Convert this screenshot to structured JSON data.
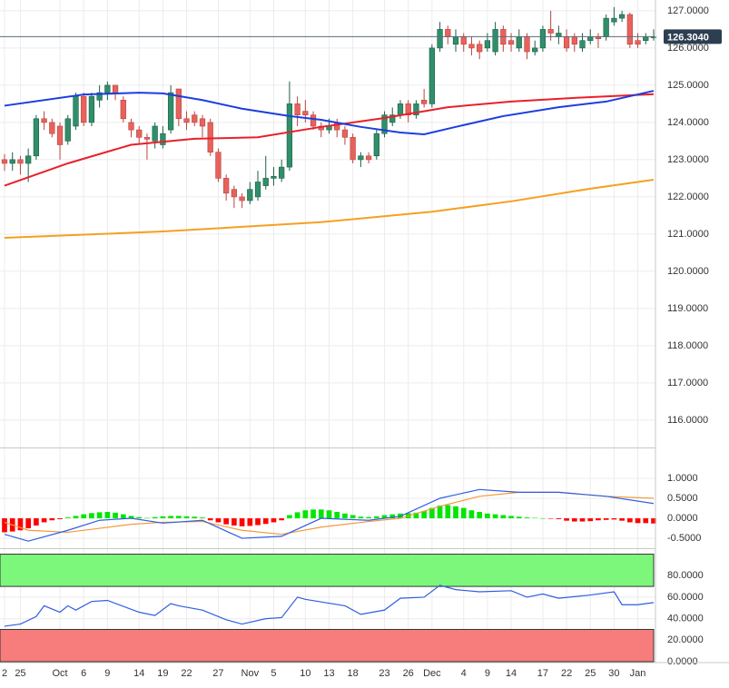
{
  "chart_data": [
    {
      "type": "candlestick",
      "categories": [
        "2",
        null,
        "25",
        null,
        null,
        null,
        null,
        "Oct",
        null,
        null,
        "6",
        null,
        null,
        "9",
        null,
        null,
        null,
        "14",
        null,
        null,
        "19",
        null,
        null,
        "22",
        null,
        null,
        null,
        "27",
        null,
        null,
        null,
        "Nov",
        null,
        null,
        "5",
        null,
        null,
        null,
        "10",
        null,
        null,
        "13",
        null,
        null,
        "18",
        null,
        null,
        null,
        "23",
        null,
        null,
        "26",
        null,
        null,
        "Dec",
        null,
        null,
        null,
        "4",
        null,
        null,
        "9",
        null,
        null,
        "14",
        null,
        null,
        null,
        "17",
        null,
        null,
        "22",
        null,
        null,
        "25",
        null,
        null,
        "30",
        null,
        null,
        "Jan",
        null,
        null
      ],
      "open": [
        123.0,
        122.9,
        123.0,
        122.9,
        123.1,
        124.1,
        124.0,
        123.9,
        123.5,
        123.9,
        124.7,
        124.0,
        124.6,
        124.8,
        125.0,
        124.6,
        124.0,
        123.8,
        123.6,
        123.5,
        123.4,
        123.8,
        124.9,
        124.1,
        124.2,
        124.1,
        124.0,
        123.2,
        122.5,
        122.2,
        122.0,
        121.9,
        122.0,
        122.3,
        122.5,
        122.5,
        122.8,
        124.5,
        124.3,
        124.2,
        123.9,
        123.8,
        124.0,
        123.8,
        123.6,
        123.0,
        123.1,
        123.1,
        123.7,
        124.0,
        124.2,
        124.5,
        124.2,
        124.6,
        124.5,
        126.0,
        126.5,
        126.1,
        126.3,
        126.1,
        126.1,
        126.0,
        125.9,
        126.5,
        126.2,
        126.0,
        126.3,
        125.9,
        126.0,
        126.5,
        126.3,
        126.3,
        126.3,
        126.0,
        126.2,
        126.3,
        126.3,
        126.7,
        126.8,
        126.9,
        126.2,
        126.2,
        126.3
      ],
      "high": [
        123.15,
        123.2,
        123.1,
        123.3,
        124.2,
        124.3,
        124.1,
        124.0,
        124.2,
        124.8,
        124.8,
        124.8,
        125.0,
        125.1,
        125.0,
        124.7,
        124.1,
        123.9,
        123.7,
        124.0,
        123.9,
        125.0,
        124.9,
        124.3,
        124.3,
        124.2,
        124.1,
        123.3,
        122.6,
        122.3,
        122.1,
        122.4,
        122.7,
        123.1,
        122.8,
        123.0,
        125.1,
        124.7,
        124.6,
        124.3,
        124.0,
        124.1,
        124.1,
        123.9,
        123.7,
        123.2,
        123.2,
        123.8,
        124.3,
        124.4,
        124.6,
        124.6,
        124.6,
        124.9,
        126.1,
        126.7,
        126.6,
        126.5,
        126.4,
        126.3,
        126.2,
        126.4,
        126.7,
        126.6,
        126.4,
        126.5,
        126.4,
        126.2,
        126.6,
        127.0,
        126.6,
        126.5,
        126.4,
        126.4,
        126.5,
        126.4,
        126.9,
        127.1,
        127.0,
        126.95,
        126.4,
        126.4,
        126.5
      ],
      "low": [
        122.7,
        122.7,
        122.6,
        122.4,
        123.0,
        123.8,
        123.6,
        123.0,
        123.4,
        123.8,
        123.9,
        123.9,
        124.4,
        124.6,
        124.6,
        124.0,
        123.6,
        123.4,
        123.0,
        123.3,
        123.3,
        123.7,
        123.9,
        123.8,
        123.9,
        123.6,
        123.1,
        122.4,
        121.9,
        121.7,
        121.7,
        121.8,
        121.9,
        122.2,
        122.3,
        122.4,
        122.7,
        123.9,
        124.0,
        123.8,
        123.6,
        123.7,
        123.6,
        123.4,
        122.9,
        122.8,
        122.9,
        123.0,
        123.6,
        123.9,
        124.1,
        124.0,
        124.1,
        124.4,
        124.4,
        125.9,
        126.1,
        125.9,
        125.9,
        125.8,
        125.7,
        125.9,
        125.8,
        125.9,
        125.9,
        125.9,
        125.7,
        125.8,
        125.9,
        126.2,
        126.1,
        125.9,
        125.9,
        125.9,
        126.1,
        126.0,
        126.2,
        126.6,
        126.7,
        126.0,
        126.0,
        126.1,
        126.2
      ],
      "close": [
        122.9,
        123.0,
        122.9,
        123.1,
        124.1,
        124.0,
        123.7,
        123.4,
        124.1,
        124.7,
        124.0,
        124.7,
        124.8,
        125.0,
        124.8,
        124.1,
        123.8,
        123.6,
        123.55,
        123.9,
        123.7,
        124.8,
        124.1,
        124.0,
        124.0,
        123.9,
        123.2,
        122.5,
        122.1,
        122.0,
        121.9,
        122.2,
        122.4,
        122.5,
        122.55,
        122.8,
        124.5,
        124.2,
        124.2,
        123.9,
        123.8,
        123.9,
        123.8,
        123.6,
        123.0,
        123.1,
        123.0,
        123.7,
        124.2,
        124.2,
        124.5,
        124.2,
        124.5,
        124.5,
        126.0,
        126.5,
        126.3,
        126.3,
        126.1,
        126.0,
        125.9,
        126.2,
        126.5,
        126.1,
        126.1,
        126.3,
        125.9,
        126.0,
        126.5,
        126.4,
        126.4,
        126.0,
        126.1,
        126.2,
        126.3,
        126.25,
        126.8,
        126.8,
        126.9,
        126.1,
        126.1,
        126.3,
        126.3
      ],
      "up_color": "#2f8f6a",
      "down_color": "#e8625c",
      "lines": [
        {
          "color": "#f5a020",
          "x": [
            0,
            20,
            40,
            54,
            64,
            74,
            82
          ],
          "values": [
            120.9,
            121.07,
            121.32,
            121.6,
            121.88,
            122.22,
            122.46
          ]
        },
        {
          "color": "#e8202a",
          "x": [
            0,
            8,
            16,
            24,
            32,
            40,
            48,
            56,
            64,
            72,
            82
          ],
          "values": [
            122.3,
            122.9,
            123.4,
            123.56,
            123.6,
            123.88,
            124.12,
            124.41,
            124.56,
            124.66,
            124.76
          ]
        },
        {
          "color": "#1c3ee0",
          "x": [
            0,
            10,
            17,
            20,
            25,
            30,
            36,
            40,
            45,
            50,
            53,
            57,
            63,
            70,
            76,
            82
          ],
          "values": [
            124.45,
            124.75,
            124.8,
            124.78,
            124.6,
            124.37,
            124.17,
            124.07,
            123.88,
            123.73,
            123.68,
            123.88,
            124.17,
            124.41,
            124.56,
            124.85
          ]
        }
      ],
      "current_price": {
        "value": 126.304,
        "label": "126.3040"
      },
      "ylim": [
        115.29,
        127.29
      ],
      "yticks": [
        {
          "value": 116,
          "label": "116.0000"
        },
        {
          "value": 117,
          "label": "117.0000"
        },
        {
          "value": 118,
          "label": "118.0000"
        },
        {
          "value": 119,
          "label": "119.0000"
        },
        {
          "value": 120,
          "label": "120.0000"
        },
        {
          "value": 121,
          "label": "121.0000"
        },
        {
          "value": 122,
          "label": "122.0000"
        },
        {
          "value": 123,
          "label": "123.0000"
        },
        {
          "value": 124,
          "label": "124.0000"
        },
        {
          "value": 125,
          "label": "125.0000"
        },
        {
          "value": 126,
          "label": "126.0000"
        },
        {
          "value": 127,
          "label": "127.0000"
        }
      ],
      "grid": true
    },
    {
      "type": "macd",
      "histogram": {
        "up_color": "#00e600",
        "down_color": "#ff0000",
        "values": [
          -0.35,
          -0.33,
          -0.3,
          -0.25,
          -0.18,
          -0.1,
          -0.05,
          -0.02,
          0.02,
          0.06,
          0.1,
          0.13,
          0.15,
          0.16,
          0.14,
          0.1,
          0.06,
          0.03,
          0.01,
          0.03,
          0.05,
          0.06,
          0.06,
          0.05,
          0.04,
          0.02,
          -0.05,
          -0.1,
          -0.15,
          -0.18,
          -0.2,
          -0.19,
          -0.17,
          -0.14,
          -0.1,
          -0.05,
          0.08,
          0.15,
          0.2,
          0.22,
          0.22,
          0.2,
          0.16,
          0.12,
          0.08,
          0.04,
          0.03,
          0.05,
          0.08,
          0.1,
          0.12,
          0.13,
          0.14,
          0.18,
          0.26,
          0.32,
          0.33,
          0.3,
          0.26,
          0.2,
          0.16,
          0.12,
          0.1,
          0.08,
          0.06,
          0.04,
          0.02,
          0.01,
          0.0,
          -0.01,
          -0.02,
          -0.06,
          -0.08,
          -0.08,
          -0.07,
          -0.05,
          -0.04,
          -0.03,
          -0.06,
          -0.1,
          -0.12,
          -0.12,
          -0.13
        ]
      },
      "lines": [
        {
          "color": "#f39a3c",
          "x": [
            0,
            3,
            8,
            12,
            16,
            20,
            25,
            30,
            35,
            40,
            46,
            50,
            55,
            60,
            65,
            70,
            76,
            82
          ],
          "values": [
            -0.1,
            -0.3,
            -0.35,
            -0.25,
            -0.15,
            -0.1,
            -0.08,
            -0.3,
            -0.4,
            -0.22,
            -0.08,
            0.0,
            0.3,
            0.55,
            0.65,
            0.65,
            0.55,
            0.5
          ]
        },
        {
          "color": "#2f5ee0",
          "x": [
            0,
            3,
            8,
            12,
            16,
            20,
            25,
            30,
            35,
            40,
            46,
            50,
            55,
            60,
            65,
            70,
            76,
            82
          ],
          "values": [
            -0.4,
            -0.57,
            -0.3,
            -0.05,
            0.0,
            -0.12,
            -0.05,
            -0.5,
            -0.45,
            0.0,
            -0.05,
            0.05,
            0.5,
            0.72,
            0.65,
            0.65,
            0.55,
            0.37
          ]
        }
      ],
      "ylim": [
        -0.68,
        1.68
      ],
      "yticks": [
        {
          "value": -0.5,
          "label": "-0.5000"
        },
        {
          "value": 0,
          "label": "0.0000"
        },
        {
          "value": 0.5,
          "label": "0.5000"
        },
        {
          "value": 1,
          "label": "1.0000"
        }
      ],
      "grid": true
    },
    {
      "type": "rsi",
      "bands": [
        {
          "from": 70,
          "to": 100,
          "color": "#7cf77c"
        },
        {
          "from": 0,
          "to": 30,
          "color": "#f77c7c"
        }
      ],
      "line": {
        "color": "#2f5ee0",
        "x": [
          0,
          2,
          4,
          5,
          7,
          8,
          9,
          11,
          13,
          17,
          19,
          21,
          22,
          25,
          28,
          30,
          33,
          35,
          37,
          38,
          43,
          45,
          48,
          50,
          53,
          55,
          57,
          60,
          64,
          66,
          68,
          70,
          74,
          77,
          78,
          80,
          82
        ],
        "values": [
          33,
          35,
          42,
          52,
          46,
          52,
          48,
          56,
          57,
          46,
          43,
          54,
          52,
          48,
          39,
          35,
          40,
          41,
          60,
          58,
          52,
          44,
          48,
          59,
          60,
          71,
          67,
          65,
          66,
          60,
          63,
          59,
          62,
          65,
          53,
          53,
          55
        ]
      },
      "ylim": [
        0,
        103
      ],
      "yticks": [
        {
          "value": 0,
          "label": "0.0000"
        },
        {
          "value": 20,
          "label": "20.0000"
        },
        {
          "value": 40,
          "label": "40.0000"
        },
        {
          "value": 60,
          "label": "60.0000"
        },
        {
          "value": 80,
          "label": "80.0000"
        }
      ],
      "grid": true
    }
  ]
}
